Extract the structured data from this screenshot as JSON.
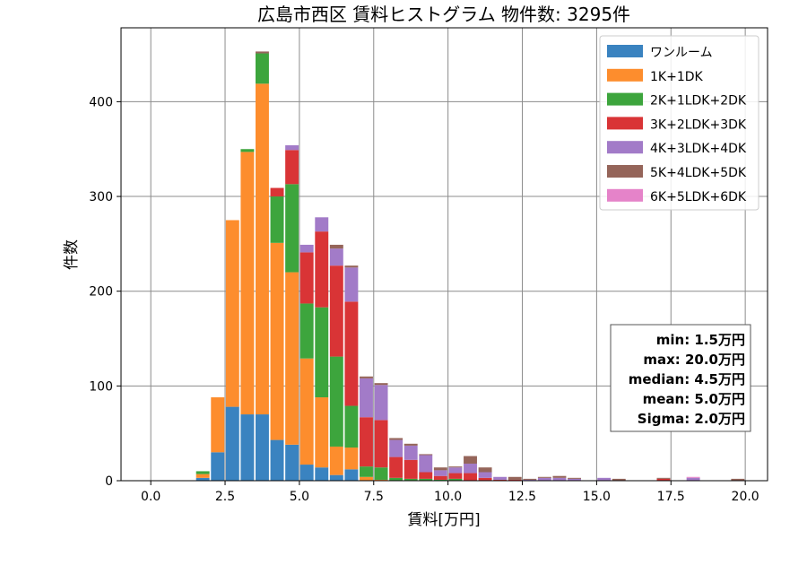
{
  "chart_data": {
    "type": "bar",
    "stacked": true,
    "title": "広島市西区 賃料ヒストグラム 物件数: 3295件",
    "xlabel": "賃料[万円]",
    "ylabel": "件数",
    "xlim": [
      -1.0,
      20.75
    ],
    "ylim": [
      0,
      478
    ],
    "xticks": [
      0.0,
      2.5,
      5.0,
      7.5,
      10.0,
      12.5,
      15.0,
      17.5,
      20.0
    ],
    "xtick_labels": [
      "0.0",
      "2.5",
      "5.0",
      "7.5",
      "10.0",
      "12.5",
      "15.0",
      "17.5",
      "20.0"
    ],
    "yticks": [
      0,
      100,
      200,
      300,
      400
    ],
    "ytick_labels": [
      "0",
      "100",
      "200",
      "300",
      "400"
    ],
    "grid": true,
    "legend_position": "top-right",
    "bin_width": 0.5,
    "bin_starts": [
      1.5,
      2.0,
      2.5,
      3.0,
      3.5,
      4.0,
      4.5,
      5.0,
      5.5,
      6.0,
      6.5,
      7.0,
      7.5,
      8.0,
      8.5,
      9.0,
      9.5,
      10.0,
      10.5,
      11.0,
      11.5,
      12.0,
      12.5,
      13.0,
      13.5,
      14.0,
      14.5,
      15.0,
      15.5,
      16.0,
      16.5,
      17.0,
      17.5,
      18.0,
      18.5,
      19.0,
      19.5
    ],
    "series": [
      {
        "name": "ワンルーム",
        "color": "#3a83c0",
        "values": [
          3,
          30,
          78,
          70,
          70,
          43,
          38,
          17,
          14,
          6,
          12,
          0,
          0,
          0,
          0,
          0,
          0,
          0,
          0,
          0,
          0,
          0,
          0,
          0,
          0,
          0,
          0,
          0,
          0,
          0,
          0,
          0,
          0,
          0,
          0,
          0,
          0
        ]
      },
      {
        "name": "1K+1DK",
        "color": "#fd8d2d",
        "values": [
          4,
          58,
          197,
          277,
          349,
          208,
          182,
          112,
          74,
          30,
          23,
          4,
          1,
          0,
          0,
          0,
          0,
          0,
          0,
          0,
          0,
          0,
          0,
          0,
          0,
          0,
          0,
          0,
          0,
          0,
          0,
          0,
          0,
          0,
          0,
          0,
          0
        ]
      },
      {
        "name": "2K+1LDK+2DK",
        "color": "#3da53d",
        "values": [
          3,
          0,
          0,
          3,
          32,
          49,
          93,
          58,
          95,
          95,
          44,
          11,
          13,
          3,
          2,
          2,
          1,
          2,
          0,
          0,
          0,
          0,
          0,
          0,
          0,
          0,
          0,
          0,
          0,
          0,
          0,
          0,
          0,
          0,
          0,
          0,
          0
        ]
      },
      {
        "name": "3K+2LDK+3DK",
        "color": "#d93436",
        "values": [
          0,
          0,
          0,
          0,
          0,
          9,
          36,
          54,
          80,
          96,
          110,
          52,
          50,
          22,
          20,
          7,
          4,
          6,
          8,
          3,
          1,
          1,
          0,
          0,
          0,
          0,
          0,
          0,
          0,
          0,
          0,
          2,
          0,
          0,
          0,
          0,
          0
        ]
      },
      {
        "name": "4K+3LDK+4DK",
        "color": "#a27bc8",
        "values": [
          0,
          0,
          0,
          0,
          0,
          0,
          5,
          8,
          15,
          18,
          36,
          41,
          37,
          18,
          15,
          18,
          6,
          6,
          10,
          6,
          3,
          0,
          1,
          3,
          3,
          2,
          0,
          3,
          0,
          0,
          0,
          0,
          0,
          3,
          0,
          0,
          0
        ]
      },
      {
        "name": "5K+4LDK+5DK",
        "color": "#95655a",
        "values": [
          0,
          0,
          0,
          0,
          2,
          0,
          0,
          0,
          0,
          4,
          2,
          2,
          2,
          2,
          2,
          1,
          3,
          1,
          8,
          5,
          0,
          3,
          1,
          1,
          2,
          1,
          0,
          0,
          2,
          0,
          0,
          1,
          0,
          0,
          0,
          0,
          2
        ]
      },
      {
        "name": "6K+5LDK+6DK",
        "color": "#e583c9",
        "values": [
          0,
          0,
          0,
          0,
          0,
          0,
          0,
          0,
          0,
          0,
          0,
          0,
          0,
          0,
          0,
          0,
          0,
          0,
          0,
          0,
          0,
          0,
          0,
          0,
          0,
          0,
          0,
          0,
          0,
          0,
          0,
          0,
          0,
          1,
          0,
          0,
          0
        ]
      }
    ],
    "stats_box": {
      "lines": [
        "min: 1.5万円",
        "max: 20.0万円",
        "median: 4.5万円",
        "mean: 5.0万円",
        "Sigma: 2.0万円"
      ]
    }
  }
}
